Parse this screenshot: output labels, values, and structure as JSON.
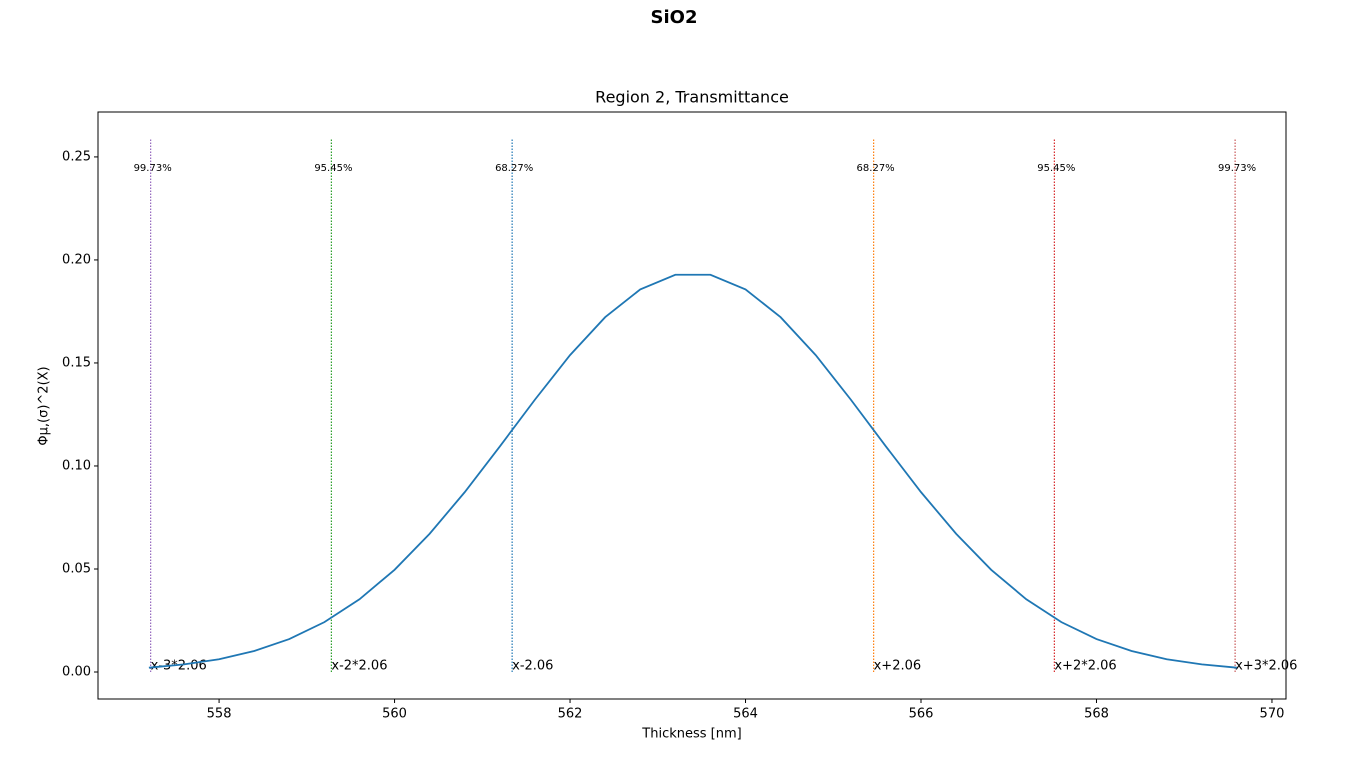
{
  "chart_data": {
    "type": "line",
    "title": "SiO2",
    "subtitle": "Region 2, Transmittance",
    "x_label": "Thickness [nm]",
    "y_label": "Φμ,(σ)^2(X)",
    "x": [
      557.2,
      557.6,
      558.0,
      558.4,
      558.8,
      559.2,
      559.6,
      560.0,
      560.4,
      560.8,
      561.2,
      561.6,
      562.0,
      562.4,
      562.8,
      563.2,
      563.6,
      564.0,
      564.4,
      564.8,
      565.2,
      565.6,
      566.0,
      566.4,
      566.8,
      567.2,
      567.6,
      568.0,
      568.4,
      568.8,
      569.2,
      569.6
    ],
    "series": [
      {
        "color": "#1f77b4",
        "values": [
          0.0021,
          0.0037,
          0.0062,
          0.0102,
          0.016,
          0.0242,
          0.0353,
          0.0496,
          0.0671,
          0.0873,
          0.1095,
          0.1322,
          0.1538,
          0.1722,
          0.1857,
          0.1928,
          0.1928,
          0.1857,
          0.1722,
          0.1538,
          0.1322,
          0.1095,
          0.0873,
          0.0671,
          0.0496,
          0.0353,
          0.0242,
          0.016,
          0.0102,
          0.0062,
          0.0037,
          0.0021
        ]
      }
    ],
    "vline_range": [
      0,
      0.259
    ],
    "vlines": [
      {
        "x": 557.22,
        "label": "x-3*2.06",
        "percent": "99.73%",
        "color": "#9467bd",
        "percent_color": "#006400"
      },
      {
        "x": 559.28,
        "label": "x-2*2.06",
        "percent": "95.45%",
        "color": "#2ca02c",
        "percent_color": "#006400"
      },
      {
        "x": 561.34,
        "label": "x-2.06",
        "percent": "68.27%",
        "color": "#1f77b4",
        "percent_color": "#00008b"
      },
      {
        "x": 565.46,
        "label": "x+2.06",
        "percent": "68.27%",
        "color": "#ff7f0e",
        "percent_color": "#00008b"
      },
      {
        "x": 567.52,
        "label": "x+2*2.06",
        "percent": "95.45%",
        "color": "#d62728",
        "percent_color": "#006400"
      },
      {
        "x": 569.58,
        "label": "x+3*2.06",
        "percent": "99.73%",
        "color": "#c85a5a",
        "percent_color": "#006400"
      }
    ],
    "xlim": [
      556.62,
      570.16
    ],
    "ylim": [
      -0.0131,
      0.2718
    ],
    "xticks": [
      558,
      560,
      562,
      564,
      566,
      568,
      570
    ],
    "yticks": [
      {
        "value": 0,
        "label": "0.00"
      },
      {
        "value": 0.05,
        "label": "0.05"
      },
      {
        "value": 0.1,
        "label": "0.10"
      },
      {
        "value": 0.15,
        "label": "0.15"
      },
      {
        "value": 0.2,
        "label": "0.20"
      },
      {
        "value": 0.25,
        "label": "0.25"
      }
    ]
  }
}
